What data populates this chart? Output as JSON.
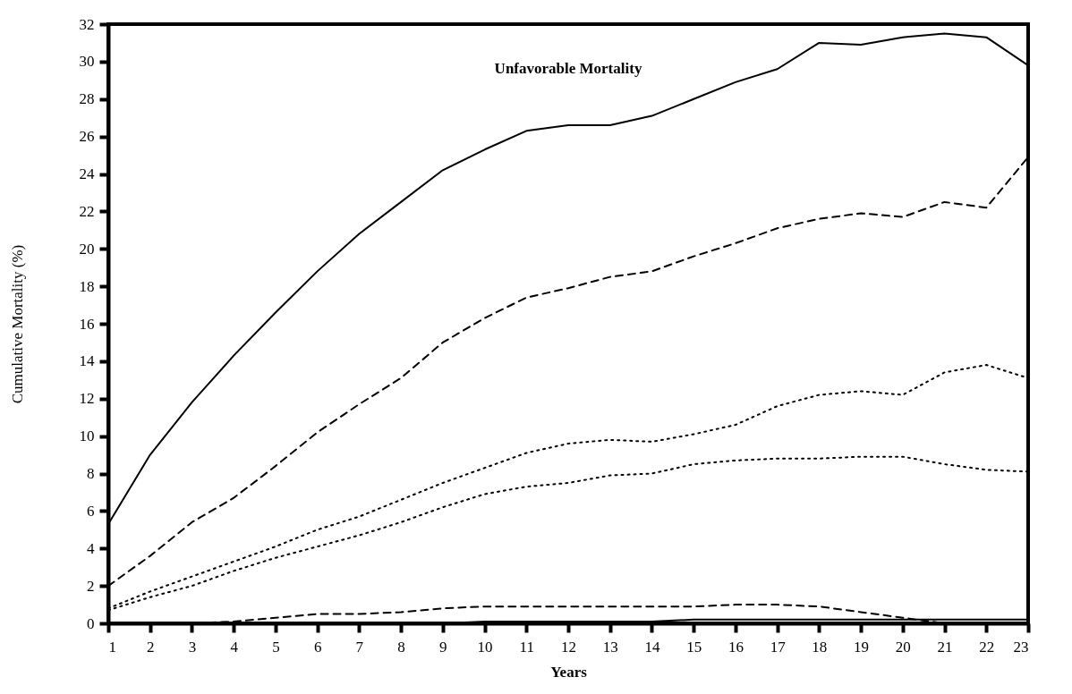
{
  "chart_data": {
    "type": "line",
    "xlabel": "Years",
    "ylabel": "Cumulative Mortality (%)",
    "annotations": [
      "Unfavorable Mortality"
    ],
    "x": [
      1,
      2,
      3,
      4,
      5,
      6,
      7,
      8,
      9,
      10,
      11,
      12,
      13,
      14,
      15,
      16,
      17,
      18,
      19,
      20,
      21,
      22,
      23
    ],
    "series": [
      {
        "color": "#000000",
        "line_style": "solid",
        "values": [
          5.3,
          9,
          11.8,
          14.3,
          16.6,
          18.8,
          20.8,
          22.5,
          24.2,
          25.3,
          26.3,
          26.6,
          26.6,
          27.1,
          28,
          28.9,
          29.6,
          31,
          30.9,
          31.3,
          31.5,
          31.3,
          29.8
        ]
      },
      {
        "color": "#000000",
        "line_style": "dashed",
        "values": [
          2,
          3.6,
          5.4,
          6.7,
          8.4,
          10.2,
          11.7,
          13.1,
          15,
          16.3,
          17.4,
          17.9,
          18.5,
          18.8,
          19.6,
          20.3,
          21.1,
          21.6,
          21.9,
          21.7,
          22.5,
          22.2,
          24.9
        ]
      },
      {
        "color": "#000000",
        "line_style": "dotted",
        "values": [
          0.8,
          1.7,
          2.5,
          3.3,
          4.1,
          5,
          5.7,
          6.6,
          7.5,
          8.3,
          9.1,
          9.6,
          9.8,
          9.7,
          10.1,
          10.6,
          11.6,
          12.2,
          12.4,
          12.2,
          13.4,
          13.8,
          13.1
        ]
      },
      {
        "color": "#000000",
        "line_style": "dotted",
        "values": [
          0.7,
          1.4,
          2,
          2.8,
          3.5,
          4.1,
          4.7,
          5.4,
          6.2,
          6.9,
          7.3,
          7.5,
          7.9,
          8,
          8.5,
          8.7,
          8.8,
          8.8,
          8.9,
          8.9,
          8.5,
          8.2,
          8.1
        ]
      },
      {
        "color": "#000000",
        "line_style": "dashed",
        "values": [
          0,
          0,
          0,
          0.1,
          0.3,
          0.5,
          0.5,
          0.6,
          0.8,
          0.9,
          0.9,
          0.9,
          0.9,
          0.9,
          0.9,
          1,
          1,
          0.9,
          0.6,
          0.3,
          0,
          0,
          0
        ]
      },
      {
        "color": "#000000",
        "line_style": "solid",
        "values": [
          0,
          0,
          0,
          0,
          0,
          0,
          0,
          0,
          0,
          0.1,
          0.1,
          0.1,
          0.1,
          0.1,
          0.2,
          0.2,
          0.2,
          0.2,
          0.2,
          0.2,
          0.2,
          0.2,
          0.2
        ]
      }
    ],
    "xlim": [
      1,
      23
    ],
    "xticks": [
      1,
      2,
      3,
      4,
      5,
      6,
      7,
      8,
      9,
      10,
      11,
      12,
      13,
      14,
      15,
      16,
      17,
      18,
      19,
      20,
      21,
      22,
      23
    ],
    "ylim": [
      0,
      32
    ],
    "yticks": [
      0,
      2,
      4,
      6,
      8,
      10,
      12,
      14,
      16,
      18,
      20,
      22,
      24,
      26,
      28,
      30,
      32
    ]
  }
}
